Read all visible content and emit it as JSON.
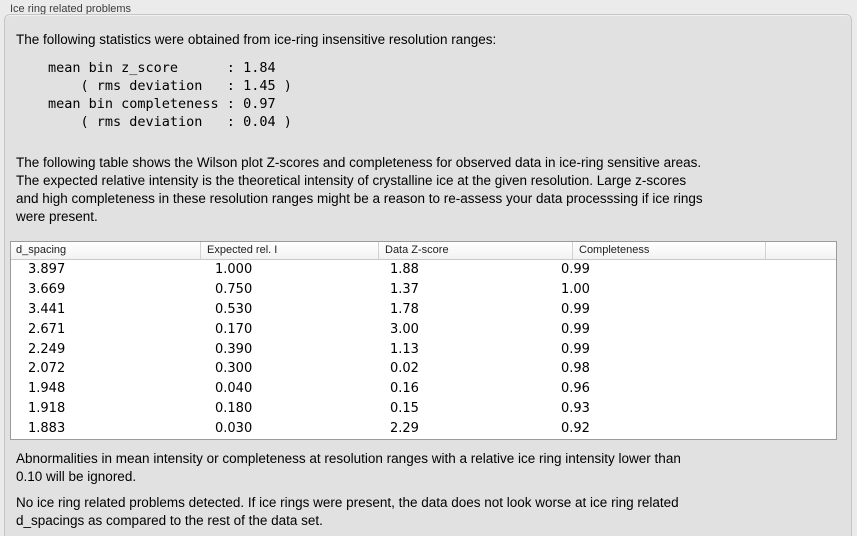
{
  "page": {
    "title": "Ice ring related problems"
  },
  "panel": {
    "intro": "The following statistics were obtained from ice-ring insensitive resolution ranges:",
    "stats_block": "mean bin z_score      : 1.84\n    ( rms deviation   : 1.45 )\nmean bin completeness : 0.97\n    ( rms deviation   : 0.04 )",
    "stats": {
      "mean_bin_z_score": "1.84",
      "z_score_rms_deviation": "1.45",
      "mean_bin_completeness": "0.97",
      "completeness_rms_deviation": "0.04"
    },
    "table_intro": "The following table shows the Wilson plot Z-scores and completeness for observed data in ice-ring sensitive areas.\nThe expected relative intensity is the theoretical intensity of crystalline ice at the given resolution. Large z-scores\nand high completeness in these resolution ranges might be a reason to re-assess your data processsing if ice rings\nwere present.",
    "table": {
      "columns": [
        "d_spacing",
        "Expected rel. I",
        "Data Z-score",
        "Completeness"
      ],
      "rows": [
        [
          "3.897",
          "1.000",
          "1.88",
          "0.99"
        ],
        [
          "3.669",
          "0.750",
          "1.37",
          "1.00"
        ],
        [
          "3.441",
          "0.530",
          "1.78",
          "0.99"
        ],
        [
          "2.671",
          "0.170",
          "3.00",
          "0.99"
        ],
        [
          "2.249",
          "0.390",
          "1.13",
          "0.99"
        ],
        [
          "2.072",
          "0.300",
          "0.02",
          "0.98"
        ],
        [
          "1.948",
          "0.040",
          "0.16",
          "0.96"
        ],
        [
          "1.918",
          "0.180",
          "0.15",
          "0.93"
        ],
        [
          "1.883",
          "0.030",
          "2.29",
          "0.92"
        ]
      ]
    },
    "note_ignore": "Abnormalities in mean intensity or completeness at resolution ranges with a relative ice ring intensity lower than\n0.10 will be ignored.",
    "conclusion": "No ice ring related problems detected. If ice rings were present, the data does not look worse at ice ring related\nd_spacings as compared to the rest of the data set."
  },
  "colors": {
    "page_bg": "#ebebeb",
    "panel_bg": "#e1e1e1",
    "panel_border": "#c5c5c5",
    "table_border": "#9b9b9b",
    "text": "#000000"
  }
}
